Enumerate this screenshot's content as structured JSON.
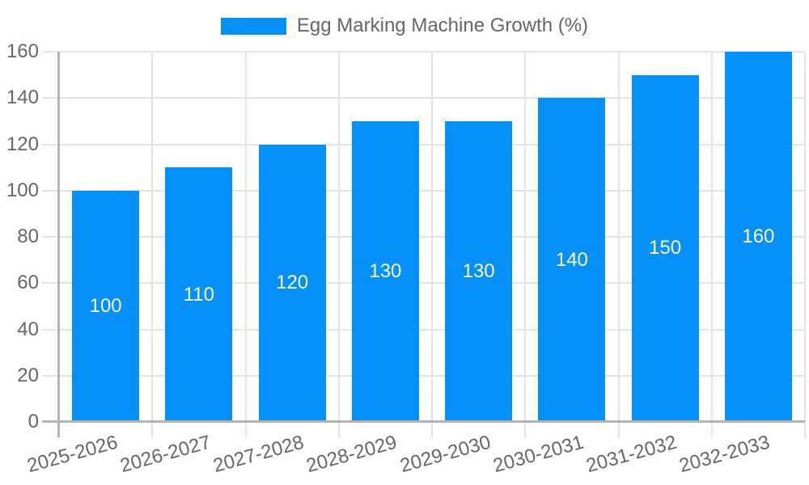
{
  "legend": {
    "label": "Egg Marking Machine Growth (%)"
  },
  "chart_data": {
    "type": "bar",
    "title": "Egg Marking Machine Growth (%)",
    "categories": [
      "2025-2026",
      "2026-2027",
      "2027-2028",
      "2028-2029",
      "2029-2030",
      "2030-2031",
      "2031-2032",
      "2032-2033"
    ],
    "values": [
      100,
      110,
      120,
      130,
      130,
      140,
      150,
      160
    ],
    "value_labels": [
      "100",
      "110",
      "120",
      "130",
      "130",
      "140",
      "150",
      "160"
    ],
    "xlabel": "",
    "ylabel": "",
    "ylim": [
      0,
      160
    ],
    "yticks": [
      0,
      20,
      40,
      60,
      80,
      100,
      120,
      140,
      160
    ],
    "grid": true,
    "legend_position": "top-center",
    "x_label_rotation_deg": -15.5,
    "colors": {
      "bar": "#0590F8",
      "grid": "#e3e3e3",
      "axis": "#b4b4b4",
      "tick_text": "#666666",
      "value_text": "#ffffff",
      "background": "#ffffff"
    }
  }
}
